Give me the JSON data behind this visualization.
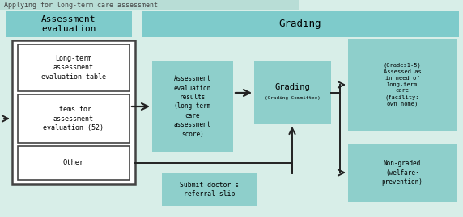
{
  "bg_color": "#d8eee8",
  "teal_header": "#7ecbcb",
  "mint_box": "#8ecfcb",
  "white_box": "#ffffff",
  "arrow_color": "#222222",
  "title_top": "Applying for long-term care assessment",
  "header_assessment": "Assessment\nevaluation",
  "header_grading": "Grading",
  "box1_text": "Long-term\nassessment\nevaluation table",
  "box2_text": "Items for\nassessment\nevaluation (52)",
  "box3_text": "Other",
  "box4_text": "Assessment\nevaluation\nresults\n(long-term\ncare\nassessment\nscore)",
  "box5_main": "Grading",
  "box5_sub": "(Grading Committee)",
  "box6_text": "(Grades1-5)\nAssessed as\nin need of\nlong-term\ncare\n(facility:\nown home)",
  "box7_text": "Submit doctor s\nreferral slip",
  "box8_text": "Non-graded\n(welfare·\nprevention)"
}
